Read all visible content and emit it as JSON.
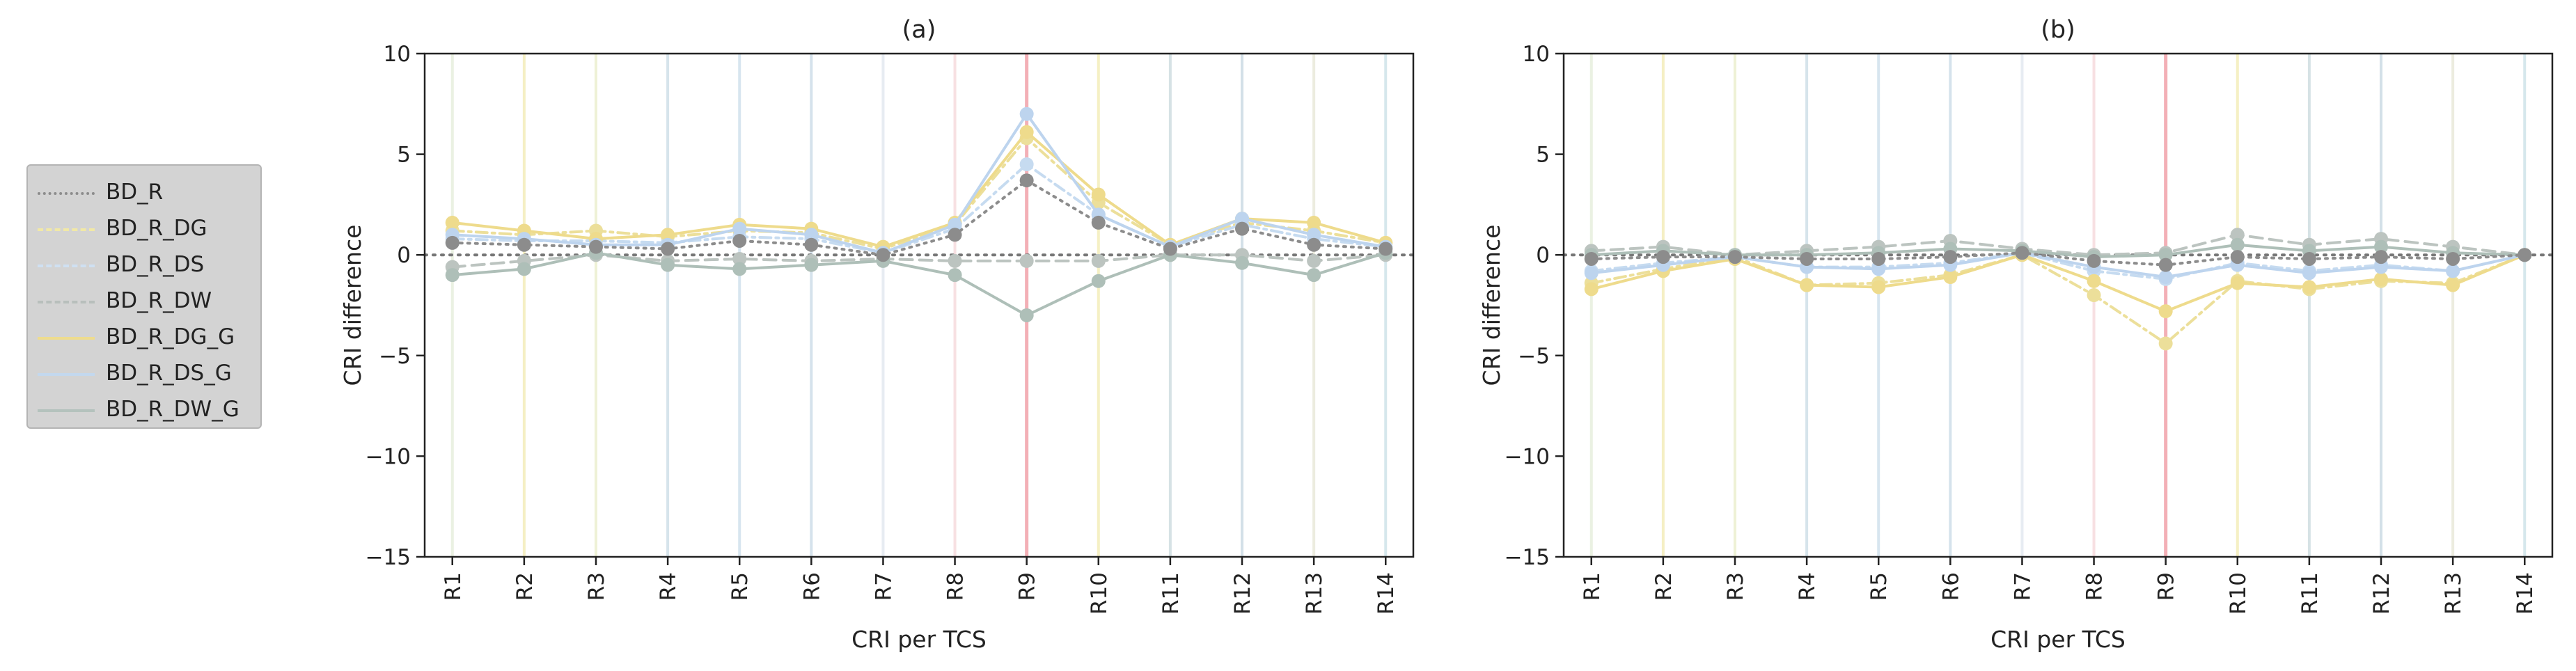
{
  "legend": {
    "items": [
      {
        "label": "BD_R",
        "color": "#8c8c8c",
        "style": "dotted"
      },
      {
        "label": "BD_R_DG",
        "color": "#f1e8a6",
        "style": "dashdot"
      },
      {
        "label": "BD_R_DS",
        "color": "#cfe0f2",
        "style": "dashdot"
      },
      {
        "label": "BD_R_DW",
        "color": "#b8bfbc",
        "style": "dashed"
      },
      {
        "label": "BD_R_DG_G",
        "color": "#eedc8e",
        "style": "solid"
      },
      {
        "label": "BD_R_DS_G",
        "color": "#c3d8ee",
        "style": "solid"
      },
      {
        "label": "BD_R_DW_G",
        "color": "#b4c2bd",
        "style": "solid"
      }
    ]
  },
  "colors": {
    "BD_R": "#8c8c8c",
    "BD_R_DG": "#ecdf9a",
    "BD_R_DS": "#c6dbf0",
    "BD_R_DW": "#bcc4c0",
    "BD_R_DG_G": "#eedb8c",
    "BD_R_DS_G": "#bdd4ee",
    "BD_R_DW_G": "#aebfb8",
    "zero_line": "#777777",
    "r9_band": "#f2a6ae"
  },
  "chart_data": [
    {
      "type": "line",
      "title": "(a)",
      "xlabel": "CRI per TCS",
      "ylabel": "CRI difference",
      "categories": [
        "R1",
        "R2",
        "R3",
        "R4",
        "R5",
        "R6",
        "R7",
        "R8",
        "R9",
        "R10",
        "R11",
        "R12",
        "R13",
        "R14"
      ],
      "ylim": [
        -15,
        10
      ],
      "yticks": [
        "10",
        "5",
        "0",
        "−5",
        "−10",
        "−15"
      ],
      "grid": false,
      "series": [
        {
          "name": "BD_R",
          "values": [
            0.6,
            0.5,
            0.4,
            0.3,
            0.7,
            0.5,
            0.0,
            1.0,
            3.7,
            1.6,
            0.3,
            1.3,
            0.5,
            0.3
          ]
        },
        {
          "name": "BD_R_DG",
          "values": [
            1.2,
            1.0,
            1.2,
            0.9,
            1.2,
            1.1,
            0.3,
            1.5,
            5.8,
            2.6,
            0.5,
            1.6,
            1.2,
            0.6
          ]
        },
        {
          "name": "BD_R_DS",
          "values": [
            0.8,
            0.7,
            0.7,
            0.6,
            0.9,
            0.8,
            0.1,
            1.3,
            4.5,
            2.0,
            0.4,
            1.5,
            0.8,
            0.4
          ]
        },
        {
          "name": "BD_R_DW",
          "values": [
            -0.6,
            -0.3,
            0.0,
            -0.3,
            -0.2,
            -0.3,
            -0.2,
            -0.3,
            -0.3,
            -0.3,
            0.0,
            0.0,
            -0.3,
            0.0
          ]
        },
        {
          "name": "BD_R_DG_G",
          "values": [
            1.6,
            1.2,
            0.8,
            1.0,
            1.5,
            1.3,
            0.4,
            1.6,
            6.1,
            3.0,
            0.5,
            1.8,
            1.6,
            0.6
          ]
        },
        {
          "name": "BD_R_DS_G",
          "values": [
            1.0,
            0.8,
            0.5,
            0.5,
            1.3,
            1.0,
            0.1,
            1.5,
            7.0,
            2.0,
            0.4,
            1.8,
            1.0,
            0.4
          ]
        },
        {
          "name": "BD_R_DW_G",
          "values": [
            -1.0,
            -0.7,
            0.1,
            -0.5,
            -0.7,
            -0.5,
            -0.3,
            -1.0,
            -3.0,
            -1.3,
            0.0,
            -0.4,
            -1.0,
            0.1
          ]
        }
      ]
    },
    {
      "type": "line",
      "title": "(b)",
      "xlabel": "CRI per TCS",
      "ylabel": "CRI difference",
      "categories": [
        "R1",
        "R2",
        "R3",
        "R4",
        "R5",
        "R6",
        "R7",
        "R8",
        "R9",
        "R10",
        "R11",
        "R12",
        "R13",
        "R14"
      ],
      "ylim": [
        -15,
        10
      ],
      "yticks": [
        "10",
        "5",
        "0",
        "−5",
        "−10",
        "−15"
      ],
      "grid": false,
      "series": [
        {
          "name": "BD_R",
          "values": [
            -0.2,
            -0.1,
            -0.1,
            -0.2,
            -0.2,
            -0.1,
            0.1,
            -0.3,
            -0.5,
            -0.1,
            -0.2,
            -0.1,
            -0.2,
            0.0
          ]
        },
        {
          "name": "BD_R_DG",
          "values": [
            -1.4,
            -0.7,
            -0.1,
            -1.5,
            -1.4,
            -1.0,
            0.0,
            -2.0,
            -4.4,
            -1.3,
            -1.7,
            -1.3,
            -1.4,
            0.0
          ]
        },
        {
          "name": "BD_R_DS",
          "values": [
            -0.8,
            -0.4,
            -0.1,
            -0.6,
            -0.6,
            -0.4,
            0.1,
            -0.8,
            -1.2,
            -0.4,
            -0.8,
            -0.5,
            -0.8,
            0.0
          ]
        },
        {
          "name": "BD_R_DW",
          "values": [
            0.2,
            0.4,
            0.0,
            0.2,
            0.4,
            0.7,
            0.3,
            0.0,
            0.1,
            1.0,
            0.5,
            0.8,
            0.4,
            0.0
          ]
        },
        {
          "name": "BD_R_DG_G",
          "values": [
            -1.7,
            -0.8,
            -0.2,
            -1.5,
            -1.6,
            -1.1,
            0.0,
            -1.3,
            -2.8,
            -1.4,
            -1.6,
            -1.2,
            -1.5,
            0.0
          ]
        },
        {
          "name": "BD_R_DS_G",
          "values": [
            -0.9,
            -0.5,
            -0.1,
            -0.6,
            -0.7,
            -0.5,
            0.1,
            -0.6,
            -1.1,
            -0.5,
            -0.9,
            -0.6,
            -0.8,
            0.0
          ]
        },
        {
          "name": "BD_R_DW_G",
          "values": [
            0.0,
            0.2,
            0.0,
            0.0,
            0.1,
            0.3,
            0.2,
            -0.1,
            0.0,
            0.5,
            0.2,
            0.4,
            0.1,
            0.0
          ]
        }
      ]
    }
  ]
}
